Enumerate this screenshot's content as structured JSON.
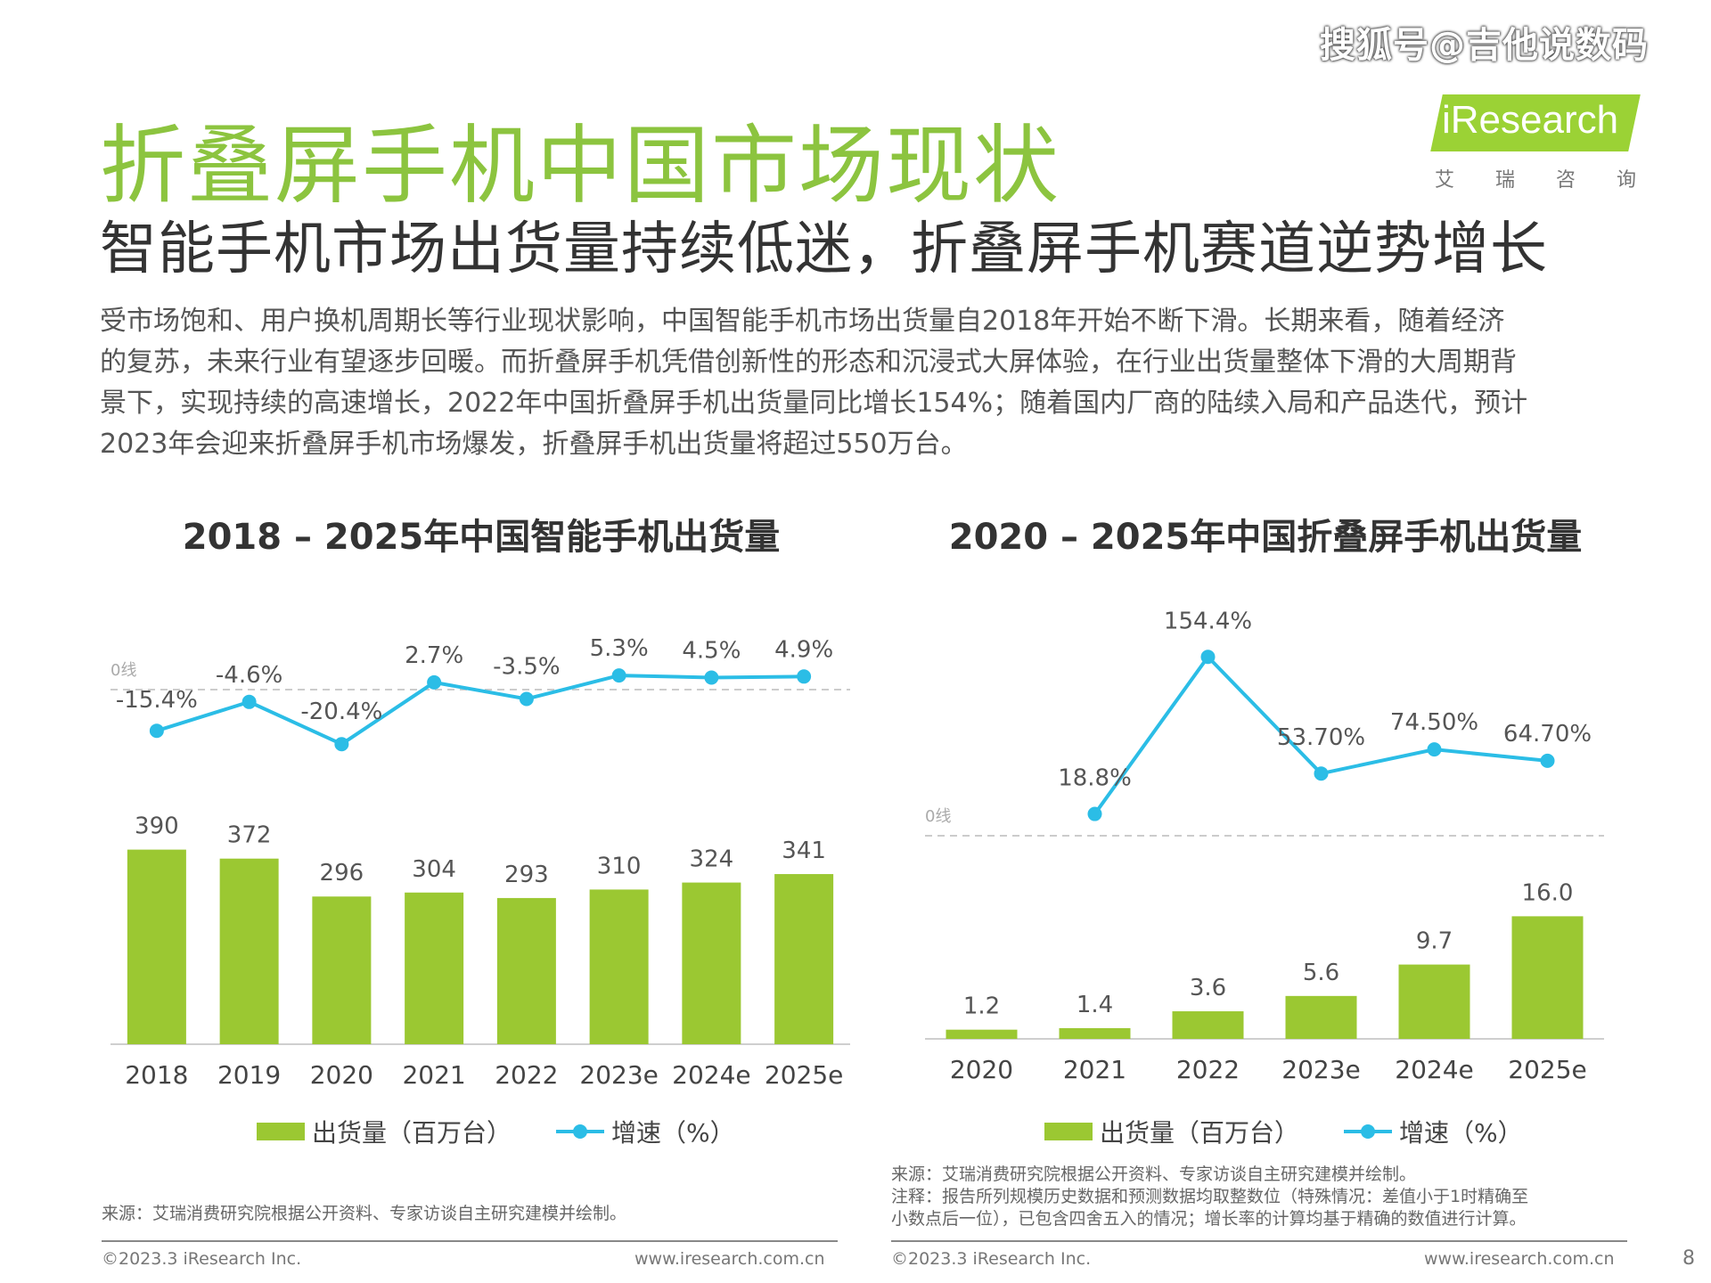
{
  "watermark": "搜狐号@吉他说数码",
  "header": {
    "title": "折叠屏手机中国市场现状",
    "subtitle": "智能手机市场出货量持续低迷，折叠屏手机赛道逆势增长",
    "logo_text": "iResearch",
    "logo_sub": [
      "艾",
      "瑞",
      "咨",
      "询"
    ]
  },
  "body_text": [
    "受市场饱和、用户换机周期长等行业现状影响，中国智能手机市场出货量自2018年开始不断下滑。长期来看，随着经济",
    "的复苏，未来行业有望逐步回暖。而折叠屏手机凭借创新性的形态和沉浸式大屏体验，在行业出货量整体下滑的大周期背",
    "景下，实现持续的高速增长，2022年中国折叠屏手机出货量同比增长154%；随着国内厂商的陆续入局和产品迭代，预计",
    "2023年会迎来折叠屏手机市场爆发，折叠屏手机出货量将超过550万台。"
  ],
  "chart_data": [
    {
      "type": "bar",
      "title": "2018 – 2025年中国智能手机出货量",
      "categories": [
        "2018",
        "2019",
        "2020",
        "2021",
        "2022",
        "2023e",
        "2024e",
        "2025e"
      ],
      "series": [
        {
          "name": "出货量（百万台）",
          "type": "bar",
          "values": [
            390,
            372,
            296,
            304,
            293,
            310,
            324,
            341
          ],
          "labels": [
            "390",
            "372",
            "296",
            "304",
            "293",
            "310",
            "324",
            "341"
          ]
        },
        {
          "name": "增速（%）",
          "type": "line",
          "values": [
            -15.4,
            -4.6,
            -20.4,
            2.7,
            -3.5,
            5.3,
            4.5,
            4.9
          ],
          "labels": [
            "-15.4%",
            "-4.6%",
            "-20.4%",
            "2.7%",
            "-3.5%",
            "5.3%",
            "4.5%",
            "4.9%"
          ]
        }
      ],
      "zero_label": "0线",
      "colors": {
        "bar": "#9bc832",
        "line": "#2bbde6"
      },
      "legend": "bottom",
      "source": "来源：艾瑞消费研究院根据公开资料、专家访谈自主研究建模并绘制。"
    },
    {
      "type": "bar",
      "title": "2020 – 2025年中国折叠屏手机出货量",
      "categories": [
        "2020",
        "2021",
        "2022",
        "2023e",
        "2024e",
        "2025e"
      ],
      "series": [
        {
          "name": "出货量（百万台）",
          "type": "bar",
          "values": [
            1.2,
            1.4,
            3.6,
            5.6,
            9.7,
            16.0
          ],
          "labels": [
            "1.2",
            "1.4",
            "3.6",
            "5.6",
            "9.7",
            "16.0"
          ]
        },
        {
          "name": "增速（%）",
          "type": "line",
          "values": [
            null,
            18.8,
            154.4,
            53.7,
            74.5,
            64.7
          ],
          "labels": [
            "",
            "18.8%",
            "154.4%",
            "53.70%",
            "74.50%",
            "64.70%"
          ]
        }
      ],
      "zero_label": "0线",
      "colors": {
        "bar": "#9bc832",
        "line": "#2bbde6"
      },
      "legend": "bottom",
      "notes": [
        "来源：艾瑞消费研究院根据公开资料、专家访谈自主研究建模并绘制。",
        "注释：报告所列规模历史数据和预测数据均取整数位（特殊情况：差值小于1时精确至",
        "小数点后一位），已包含四舍五入的情况；增长率的计算均基于精确的数值进行计算。"
      ]
    }
  ],
  "footer": {
    "copyright": "©2023.3 iResearch Inc.",
    "url": "www.iresearch.com.cn",
    "page": "8"
  }
}
